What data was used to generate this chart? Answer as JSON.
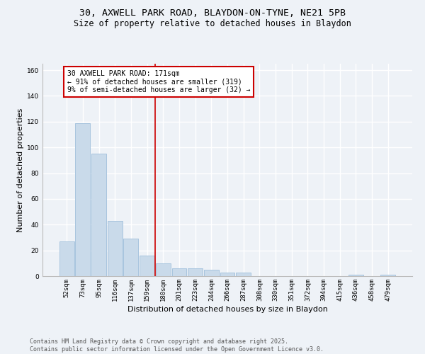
{
  "title_line1": "30, AXWELL PARK ROAD, BLAYDON-ON-TYNE, NE21 5PB",
  "title_line2": "Size of property relative to detached houses in Blaydon",
  "xlabel": "Distribution of detached houses by size in Blaydon",
  "ylabel": "Number of detached properties",
  "categories": [
    "52sqm",
    "73sqm",
    "95sqm",
    "116sqm",
    "137sqm",
    "159sqm",
    "180sqm",
    "201sqm",
    "223sqm",
    "244sqm",
    "266sqm",
    "287sqm",
    "308sqm",
    "330sqm",
    "351sqm",
    "372sqm",
    "394sqm",
    "415sqm",
    "436sqm",
    "458sqm",
    "479sqm"
  ],
  "values": [
    27,
    119,
    95,
    43,
    29,
    16,
    10,
    6,
    6,
    5,
    3,
    3,
    0,
    0,
    0,
    0,
    0,
    0,
    1,
    0,
    1
  ],
  "bar_color": "#c9daea",
  "bar_edgecolor": "#a8c4de",
  "vline_x_index": 6,
  "vline_color": "#cc0000",
  "annotation_text": "30 AXWELL PARK ROAD: 171sqm\n← 91% of detached houses are smaller (319)\n9% of semi-detached houses are larger (32) →",
  "annotation_box_facecolor": "white",
  "annotation_box_edgecolor": "#cc0000",
  "ylim": [
    0,
    165
  ],
  "yticks": [
    0,
    20,
    40,
    60,
    80,
    100,
    120,
    140,
    160
  ],
  "footer_line1": "Contains HM Land Registry data © Crown copyright and database right 2025.",
  "footer_line2": "Contains public sector information licensed under the Open Government Licence v3.0.",
  "background_color": "#eef2f7",
  "grid_color": "#ffffff",
  "title_fontsize": 9.5,
  "subtitle_fontsize": 8.5,
  "axis_label_fontsize": 8,
  "tick_fontsize": 6.5,
  "annotation_fontsize": 7,
  "footer_fontsize": 6
}
